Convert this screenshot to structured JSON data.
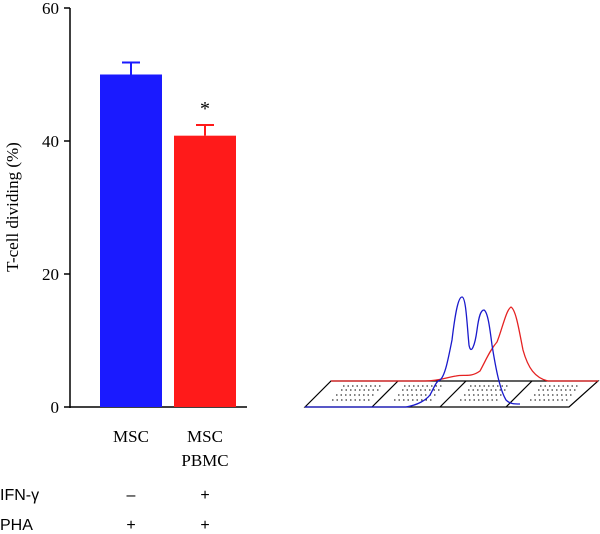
{
  "chart_data": {
    "type": "bar",
    "ylabel": "T-cell dividing (%)",
    "ylim": [
      0,
      60
    ],
    "yticks": [
      "0",
      "20",
      "40",
      "60"
    ],
    "grid": false,
    "categories": [
      {
        "label_lines": [
          "MSC"
        ],
        "value": 50,
        "error": 1.8,
        "color": "#1a1aff",
        "annotation": ""
      },
      {
        "label_lines": [
          "MSC",
          "PBMC"
        ],
        "value": 40.8,
        "error": 1.6,
        "color": "#ff1a1a",
        "annotation": "*"
      }
    ],
    "conditions": [
      {
        "label": "IFN-γ",
        "values": [
          "–",
          "+"
        ]
      },
      {
        "label": "PHA",
        "values": [
          "+",
          "+"
        ]
      }
    ]
  },
  "inset": {
    "type": "histogram-overlay",
    "series": [
      {
        "key": "blue",
        "color": "#1a1acc"
      },
      {
        "key": "red",
        "color": "#e52222"
      }
    ]
  }
}
